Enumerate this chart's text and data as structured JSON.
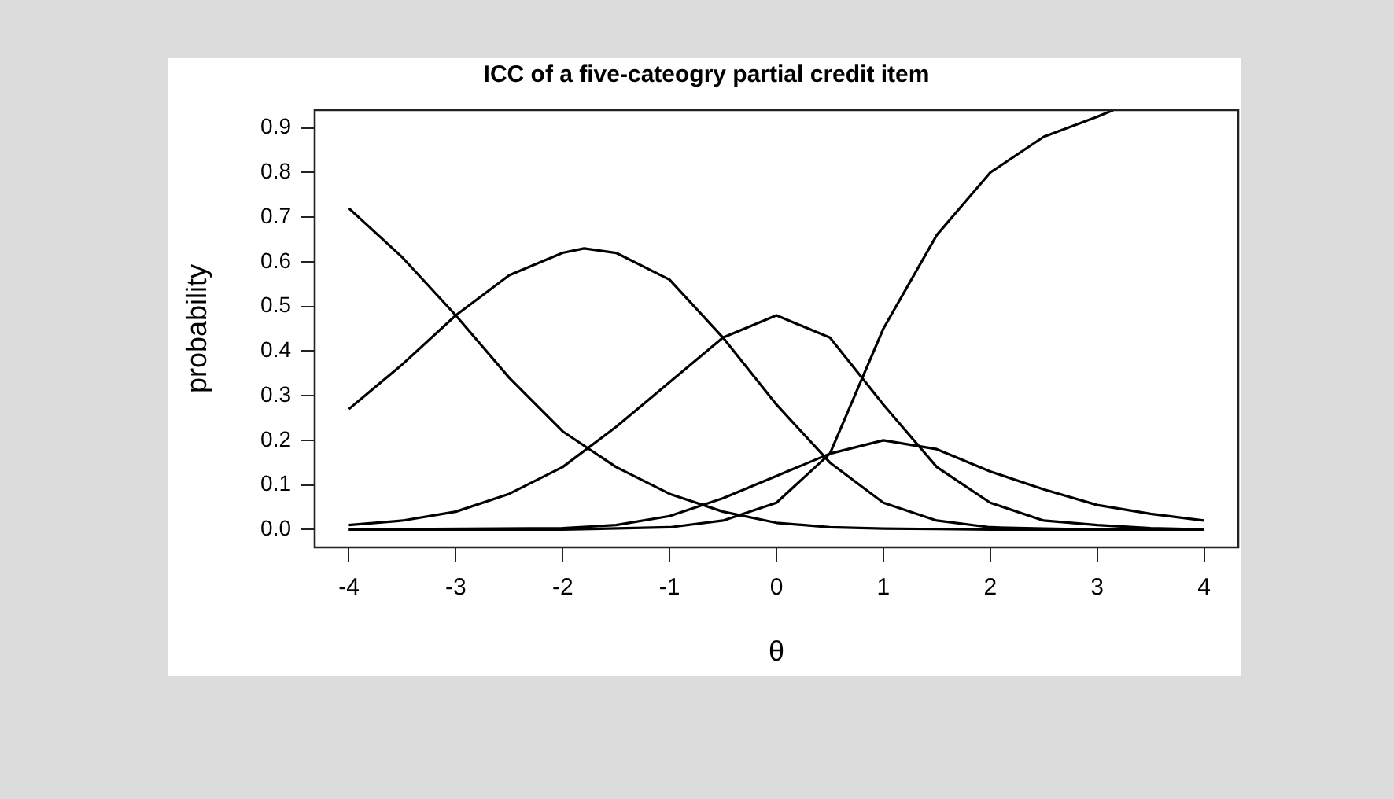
{
  "chart_data": {
    "type": "line",
    "title": "ICC of a five-cateogry partial credit item",
    "xlabel": "θ",
    "ylabel": "probability",
    "xlim": [
      -4.32,
      4.32
    ],
    "xticks": [
      -4,
      -3,
      -2,
      -1,
      0,
      1,
      2,
      3,
      4
    ],
    "ylim": [
      -0.04,
      0.94
    ],
    "yticks": [
      {
        "value": 0,
        "label": "0.0"
      },
      0.1,
      0.2,
      0.3,
      0.4,
      0.5,
      0.6,
      0.7,
      0.8,
      0.9
    ],
    "grid": false,
    "legend": false,
    "marker": "none",
    "line_style": "solid",
    "series": [
      {
        "color": "#000000",
        "x": [
          -4,
          -3.5,
          -3,
          -2.5,
          -2,
          -1.5,
          -1,
          -0.5,
          0,
          0.5,
          1,
          1.5,
          2,
          3,
          4
        ],
        "values": [
          0.72,
          0.61,
          0.48,
          0.34,
          0.22,
          0.14,
          0.08,
          0.04,
          0.015,
          0.005,
          0.002,
          0.001,
          0,
          0,
          0
        ]
      },
      {
        "color": "#000000",
        "x": [
          -4,
          -3.5,
          -3,
          -2.5,
          -2,
          -1.8,
          -1.5,
          -1,
          -0.5,
          0,
          0.5,
          1,
          1.5,
          2,
          2.5,
          3,
          4
        ],
        "values": [
          0.27,
          0.37,
          0.48,
          0.57,
          0.62,
          0.63,
          0.62,
          0.56,
          0.43,
          0.28,
          0.15,
          0.06,
          0.02,
          0.005,
          0.002,
          0,
          0
        ]
      },
      {
        "color": "#000000",
        "x": [
          -4,
          -3.5,
          -3,
          -2.5,
          -2,
          -1.5,
          -1,
          -0.5,
          0,
          0.5,
          1,
          1.5,
          2,
          2.5,
          3,
          3.5,
          4
        ],
        "values": [
          0.01,
          0.02,
          0.04,
          0.08,
          0.14,
          0.23,
          0.33,
          0.43,
          0.48,
          0.43,
          0.28,
          0.14,
          0.06,
          0.02,
          0.01,
          0.003,
          0
        ]
      },
      {
        "color": "#000000",
        "x": [
          -4,
          -2,
          -1.5,
          -1,
          -0.5,
          0,
          0.5,
          1,
          1.5,
          2,
          2.5,
          3,
          3.5,
          4
        ],
        "values": [
          0,
          0.003,
          0.01,
          0.03,
          0.07,
          0.12,
          0.17,
          0.2,
          0.18,
          0.13,
          0.09,
          0.055,
          0.035,
          0.02
        ]
      },
      {
        "color": "#000000",
        "x": [
          -4,
          -2,
          -1,
          -0.5,
          0,
          0.5,
          1,
          1.5,
          2,
          2.5,
          3,
          3.15
        ],
        "values": [
          0,
          0,
          0.005,
          0.02,
          0.06,
          0.17,
          0.45,
          0.66,
          0.8,
          0.88,
          0.925,
          0.94
        ]
      }
    ]
  }
}
